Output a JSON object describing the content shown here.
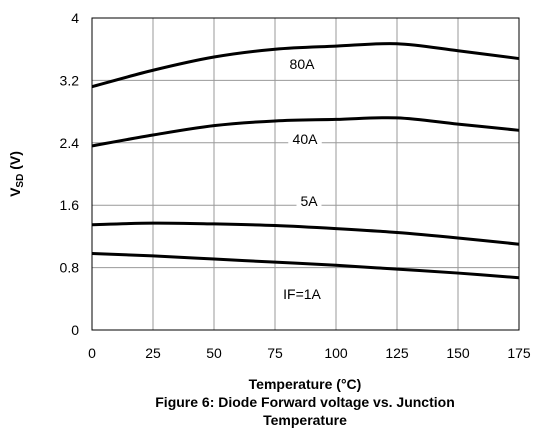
{
  "chart_data": {
    "type": "line",
    "xlabel": "Temperature (°C)",
    "ylabel_main": "V",
    "ylabel_sub": "SD",
    "ylabel_unit": " (V)",
    "xlim": [
      0,
      175
    ],
    "ylim": [
      0,
      4
    ],
    "x_ticks": [
      "0",
      "25",
      "50",
      "75",
      "100",
      "125",
      "150",
      "175"
    ],
    "y_ticks": [
      "0",
      "0.8",
      "1.6",
      "2.4",
      "3.2",
      "4"
    ],
    "grid": true,
    "x": [
      0,
      25,
      50,
      75,
      100,
      125,
      150,
      175
    ],
    "series": [
      {
        "name": "80A",
        "values": [
          3.12,
          3.33,
          3.5,
          3.6,
          3.64,
          3.67,
          3.58,
          3.48
        ]
      },
      {
        "name": "40A",
        "values": [
          2.36,
          2.5,
          2.62,
          2.68,
          2.7,
          2.72,
          2.64,
          2.56
        ]
      },
      {
        "name": "5A",
        "values": [
          1.35,
          1.37,
          1.36,
          1.34,
          1.3,
          1.25,
          1.18,
          1.1
        ]
      },
      {
        "name": "IF=1A",
        "values": [
          0.98,
          0.95,
          0.91,
          0.87,
          0.83,
          0.78,
          0.73,
          0.67
        ]
      }
    ]
  },
  "caption": {
    "line1": "Figure 6: Diode Forward voltage vs. Junction",
    "line2": "Temperature"
  }
}
